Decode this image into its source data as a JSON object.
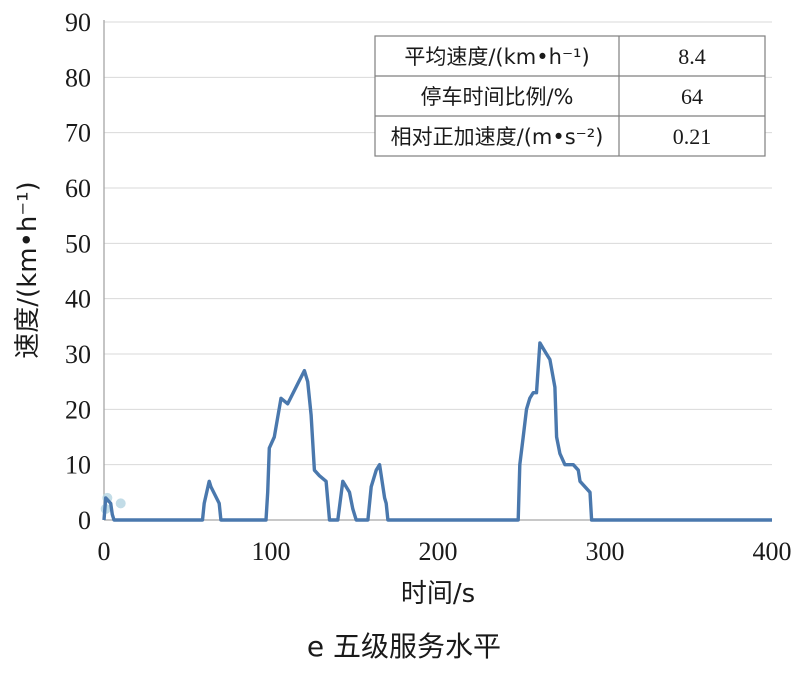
{
  "chart_data": {
    "type": "line",
    "caption": "e 五级服务水平",
    "xlabel": "时间/s",
    "ylabel": "速度/(km•h⁻¹)",
    "xlim": [
      0,
      400
    ],
    "ylim": [
      0,
      90
    ],
    "xticks": [
      0,
      100,
      200,
      300,
      400
    ],
    "yticks": [
      0,
      10,
      20,
      30,
      40,
      50,
      60,
      70,
      80,
      90
    ],
    "grid": "horizontal",
    "line_color": "#4a78ad",
    "marker_color": "#b7d6e3",
    "markers": [
      {
        "x": 1,
        "y": 2
      },
      {
        "x": 2,
        "y": 4
      },
      {
        "x": 10,
        "y": 3
      }
    ],
    "series": [
      {
        "x": [
          0,
          1,
          4,
          5,
          6,
          40,
          59,
          60,
          63,
          64,
          69,
          70,
          97,
          98,
          99,
          102,
          106,
          110,
          115,
          120,
          122,
          124,
          126,
          129,
          133,
          135,
          136,
          140,
          143,
          147,
          149,
          151,
          156,
          157,
          158,
          160,
          163,
          165,
          168,
          169,
          170,
          248,
          249,
          251,
          253,
          255,
          257,
          259,
          261,
          263,
          265,
          267,
          270,
          271,
          273,
          276,
          278,
          281,
          284,
          285,
          288,
          291,
          292,
          293,
          400
        ],
        "y": [
          0,
          4,
          3,
          1,
          0,
          0,
          0,
          3,
          7,
          6,
          3,
          0,
          0,
          5,
          13,
          15,
          22,
          21,
          24,
          27,
          25,
          19,
          9,
          8,
          7,
          0,
          0,
          0,
          7,
          5,
          2,
          0,
          0,
          0,
          0,
          6,
          9,
          10,
          4,
          3,
          0,
          0,
          10,
          15,
          20,
          22,
          23,
          23,
          32,
          31,
          30,
          29,
          24,
          15,
          12,
          10,
          10,
          10,
          9,
          7,
          6,
          5,
          0,
          0,
          0
        ]
      }
    ],
    "table": {
      "rows": [
        {
          "label": "平均速度/(km•h⁻¹)",
          "value": "8.4"
        },
        {
          "label": "停车时间比例/%",
          "value": "64"
        },
        {
          "label": "相对正加速度/(m•s⁻²)",
          "value": "0.21"
        }
      ]
    }
  }
}
